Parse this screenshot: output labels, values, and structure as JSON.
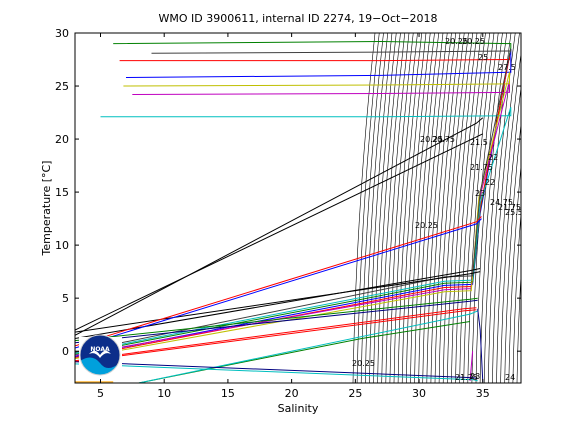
{
  "chart_data": {
    "type": "line",
    "title": "WMO ID 3900611, internal ID 2274, 19−Oct−2018",
    "xlabel": "Salinity",
    "ylabel": "Temperature [°C]",
    "xlim": [
      3,
      38
    ],
    "ylim": [
      -3,
      30
    ],
    "xticks": [
      5,
      10,
      15,
      20,
      25,
      30,
      35
    ],
    "yticks": [
      0,
      5,
      10,
      15,
      20,
      25,
      30
    ],
    "grid": false,
    "density_contour_labels": [
      "20.25",
      "20.25",
      "20.75",
      "20.25",
      "21.75",
      "22",
      "23",
      "24.75",
      "21.75",
      "25.5",
      "20.25",
      "23",
      "21.75",
      "24",
      "20.25",
      "21.5",
      "22",
      "25",
      "27.5"
    ],
    "logo_text": "NOAA",
    "series": [
      {
        "color": "#0000ff",
        "x": [
          3.0,
          32.0,
          34.2,
          34.8,
          37.2,
          37.2,
          27.0,
          7.0
        ],
        "y": [
          -0.5,
          6.2,
          6.3,
          13.0,
          28.5,
          26.3,
          26.0,
          25.8
        ]
      },
      {
        "color": "#008000",
        "x": [
          3.0,
          32.0,
          34.2,
          34.8,
          37.2,
          37.2,
          27.0,
          6.0
        ],
        "y": [
          -0.3,
          6.4,
          6.5,
          13.3,
          28.6,
          29.0,
          29.2,
          29.0
        ]
      },
      {
        "color": "#ff0000",
        "x": [
          3.0,
          32.0,
          34.1,
          34.8,
          37.1,
          37.1,
          27.0,
          6.5
        ],
        "y": [
          -0.6,
          6.0,
          6.1,
          13.5,
          27.8,
          27.5,
          27.4,
          27.4
        ]
      },
      {
        "color": "#00bfbf",
        "x": [
          3.0,
          32.0,
          34.2,
          34.8,
          37.2,
          37.2,
          27.0,
          5.0
        ],
        "y": [
          -0.2,
          6.6,
          6.7,
          14.0,
          23.0,
          22.2,
          22.1,
          22.1
        ]
      },
      {
        "color": "#bf00bf",
        "x": [
          3.0,
          32.0,
          34.1,
          34.7,
          37.1,
          37.1,
          27.0,
          7.5
        ],
        "y": [
          -0.4,
          5.8,
          5.9,
          14.2,
          25.5,
          24.4,
          24.3,
          24.2
        ]
      },
      {
        "color": "#bfbf00",
        "x": [
          3.0,
          32.0,
          34.1,
          34.7,
          37.1,
          37.1,
          27.0,
          6.8
        ],
        "y": [
          -0.7,
          5.6,
          5.7,
          14.5,
          26.3,
          25.2,
          25.1,
          25.0
        ]
      },
      {
        "color": "#404040",
        "x": [
          3.0,
          32.0,
          34.2,
          34.8,
          37.2,
          37.2,
          27.0,
          9.0
        ],
        "y": [
          -0.1,
          7.0,
          7.1,
          15.0,
          28.5,
          28.3,
          28.2,
          28.1
        ]
      },
      {
        "color": "#000000",
        "x": [
          3.0,
          34.5,
          35.0
        ],
        "y": [
          1.5,
          21.5,
          22.0
        ]
      },
      {
        "color": "#000000",
        "x": [
          3.0,
          34.5,
          35.0
        ],
        "y": [
          2.0,
          20.2,
          20.5
        ]
      },
      {
        "color": "#000000",
        "x": [
          3.0,
          34.0,
          34.8
        ],
        "y": [
          1.8,
          7.3,
          7.5
        ]
      },
      {
        "color": "#000000",
        "x": [
          3.0,
          34.0,
          34.8
        ],
        "y": [
          1.2,
          7.6,
          7.8
        ]
      },
      {
        "color": "#0000ff",
        "x": [
          3.0,
          34.5,
          34.9
        ],
        "y": [
          0.3,
          12.0,
          12.5
        ]
      },
      {
        "color": "#ff0000",
        "x": [
          3.0,
          34.5,
          34.9
        ],
        "y": [
          0.5,
          12.2,
          12.7
        ]
      },
      {
        "color": "#ff0000",
        "x": [
          3.0,
          33.5,
          34.5
        ],
        "y": [
          -0.9,
          4.0,
          4.1
        ]
      },
      {
        "color": "#ff0000",
        "x": [
          3.0,
          33.5,
          34.5
        ],
        "y": [
          -1.0,
          3.8,
          3.9
        ]
      },
      {
        "color": "#000080",
        "x": [
          3.0,
          34.0,
          34.6
        ],
        "y": [
          0.8,
          4.7,
          4.8
        ]
      },
      {
        "color": "#008000",
        "x": [
          3.0,
          34.0,
          34.6
        ],
        "y": [
          1.0,
          4.9,
          5.0
        ]
      },
      {
        "color": "#008000",
        "x": [
          8.0,
          25.5,
          34.0
        ],
        "y": [
          -3.0,
          1.2,
          2.8
        ]
      },
      {
        "color": "#00bfbf",
        "x": [
          3.0,
          34.3,
          34.6
        ],
        "y": [
          -1.2,
          -2.7,
          -2.8
        ]
      },
      {
        "color": "#00bfbf",
        "x": [
          8.0,
          34.0,
          34.6
        ],
        "y": [
          -3.0,
          3.5,
          3.8
        ]
      },
      {
        "color": "#000080",
        "x": [
          3.0,
          34.3,
          34.6
        ],
        "y": [
          -1.0,
          -2.5,
          -2.6
        ]
      },
      {
        "color": "#000080",
        "x": [
          34.6,
          34.8,
          35.0
        ],
        "y": [
          4.0,
          2.0,
          -2.9
        ]
      },
      {
        "color": "#ffa500",
        "x": [
          3.0,
          6.0
        ],
        "y": [
          -2.9,
          -2.9
        ]
      },
      {
        "color": "#bf00bf",
        "x": [
          34.0,
          34.2
        ],
        "y": [
          -2.8,
          0.0
        ]
      }
    ]
  }
}
